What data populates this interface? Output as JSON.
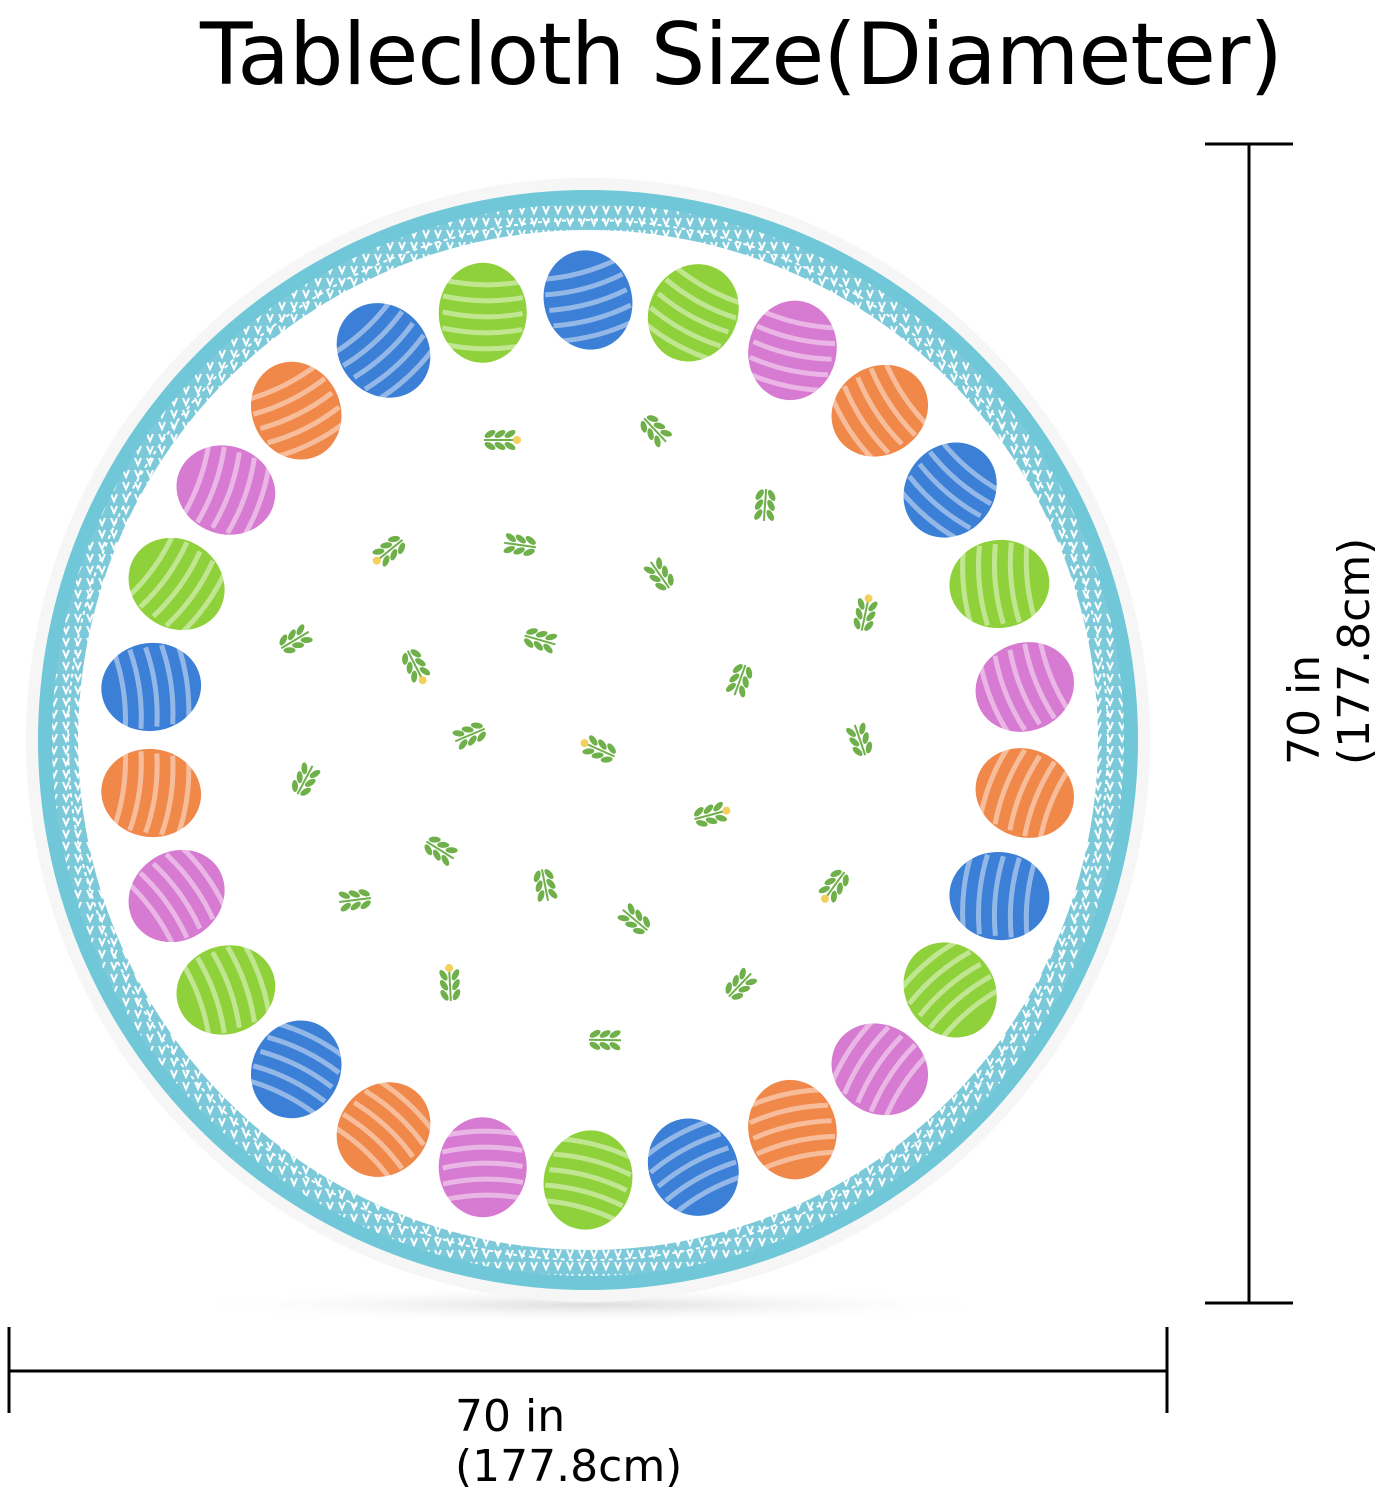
{
  "title": "Tablecloth Size(Diameter)",
  "dimensions": {
    "width": {
      "line1": "70 in",
      "line2": "(177.8cm)"
    },
    "height": {
      "line1": "70 in",
      "line2": "(177.8cm)"
    }
  },
  "colors": {
    "border": "#6ec8d8",
    "egg_blue": "#3b7fd6",
    "egg_green": "#8fd13a",
    "egg_pink": "#d77ad2",
    "egg_orange": "#f0884a",
    "leaf": "#6fb04a"
  },
  "icons": [
    "easter-egg-icon",
    "leaf-sprig-icon"
  ]
}
